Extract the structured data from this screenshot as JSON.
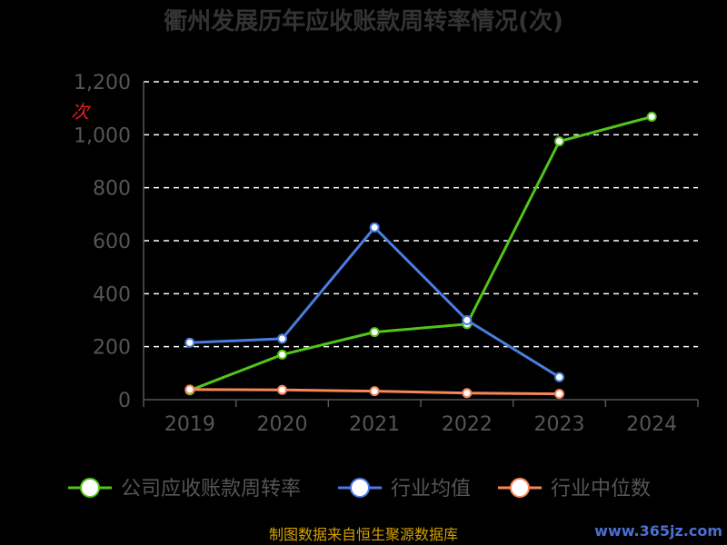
{
  "chart_data": {
    "type": "line",
    "title": "衢州发展历年应收账款周转率情况(次)",
    "categories": [
      "2019",
      "2020",
      "2021",
      "2022",
      "2023",
      "2024"
    ],
    "ylim": [
      0,
      1200
    ],
    "yticks": [
      "0",
      "200",
      "400",
      "600",
      "800",
      "1,000",
      "1,200"
    ],
    "ytick_values": [
      0,
      200,
      400,
      600,
      800,
      1000,
      1200
    ],
    "grid": true,
    "legend_position": "bottom",
    "unit_mark": "次",
    "series": [
      {
        "name": "公司应收账款周转率",
        "color": "#52c41a",
        "values": [
          35,
          170,
          255,
          285,
          975,
          1068
        ]
      },
      {
        "name": "行业均值",
        "color": "#4a7de0",
        "values": [
          215,
          230,
          650,
          300,
          85,
          null
        ]
      },
      {
        "name": "行业中位数",
        "color": "#f5875a",
        "values": [
          38,
          37,
          32,
          25,
          22,
          null
        ]
      }
    ]
  },
  "footer": {
    "source": "制图数据来自恒生聚源数据库",
    "watermark": "www.365jz.com"
  }
}
